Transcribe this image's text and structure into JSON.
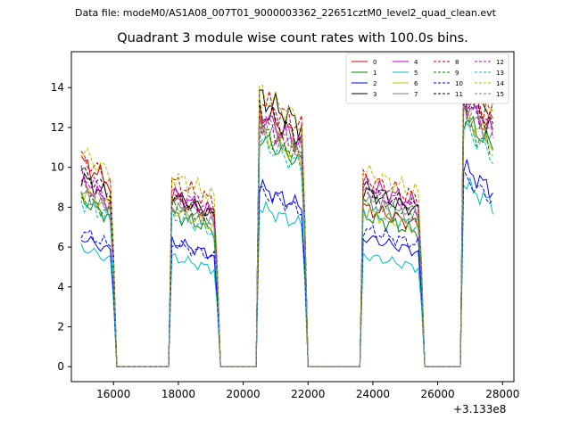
{
  "suptitle": "Data file: modeM0/AS1A08_007T01_9000003362_22651cztM0_level2_quad_clean.evt",
  "chart_data": {
    "type": "line",
    "title": "Quadrant 3 module wise count rates with 100.0s bins.",
    "xlabel": "",
    "ylabel": "",
    "x_offset_label": "+3.133e8",
    "x_ticks": [
      16000,
      18000,
      20000,
      22000,
      24000,
      26000,
      28000
    ],
    "x_tick_labels": [
      "16000",
      "18000",
      "20000",
      "22000",
      "24000",
      "26000",
      "28000"
    ],
    "y_ticks": [
      0,
      2,
      4,
      6,
      8,
      10,
      12,
      14
    ],
    "y_tick_labels": [
      "0",
      "2",
      "4",
      "6",
      "8",
      "10",
      "12",
      "14"
    ],
    "xlim": [
      14700,
      28350
    ],
    "ylim": [
      -0.75,
      15.8
    ],
    "grid": false,
    "legend_position": "top-right",
    "segments": [
      {
        "start": 15000,
        "end": 16000,
        "drop_end": 16100
      },
      {
        "start": 17800,
        "end": 19200,
        "drop_end": 19300
      },
      {
        "start": 20500,
        "end": 21900,
        "drop_end": 22000
      },
      {
        "start": 23700,
        "end": 25500,
        "drop_end": 25600
      },
      {
        "start": 26800,
        "end": 27700,
        "drop_end": 27700
      }
    ],
    "gaps_value": 0,
    "series": [
      {
        "name": "0",
        "color": "#d00000",
        "dash": "solid",
        "levels": [
          10.3,
          8.5,
          12.8,
          8.0,
          13.8
        ]
      },
      {
        "name": "1",
        "color": "#008000",
        "dash": "solid",
        "levels": [
          8.4,
          7.7,
          11.5,
          7.6,
          12.5
        ]
      },
      {
        "name": "2",
        "color": "#0000ff",
        "dash": "solid",
        "levels": [
          6.5,
          6.3,
          9.0,
          6.5,
          10.0
        ]
      },
      {
        "name": "3",
        "color": "#000000",
        "dash": "solid",
        "levels": [
          9.5,
          8.6,
          13.6,
          8.8,
          14.5
        ]
      },
      {
        "name": "4",
        "color": "#bf00bf",
        "dash": "solid",
        "levels": [
          9.2,
          8.7,
          12.6,
          9.2,
          13.3
        ]
      },
      {
        "name": "5",
        "color": "#00bfbf",
        "dash": "solid",
        "levels": [
          6.0,
          5.5,
          8.0,
          5.6,
          9.2
        ]
      },
      {
        "name": "6",
        "color": "#bfbf00",
        "dash": "solid",
        "levels": [
          8.9,
          7.9,
          11.8,
          7.8,
          12.7
        ]
      },
      {
        "name": "7",
        "color": "#7f7f7f",
        "dash": "solid",
        "levels": [
          8.7,
          8.0,
          12.1,
          8.3,
          12.9
        ]
      },
      {
        "name": "8",
        "color": "#d00000",
        "dash": "dashed",
        "levels": [
          10.5,
          9.3,
          13.5,
          9.5,
          14.2
        ]
      },
      {
        "name": "9",
        "color": "#008000",
        "dash": "dashed",
        "levels": [
          8.6,
          8.2,
          11.9,
          8.5,
          12.3
        ]
      },
      {
        "name": "10",
        "color": "#0000ff",
        "dash": "dashed",
        "levels": [
          6.8,
          6.2,
          8.8,
          6.9,
          9.5
        ]
      },
      {
        "name": "11",
        "color": "#000000",
        "dash": "dashed",
        "levels": [
          9.8,
          8.5,
          12.9,
          9.0,
          13.6
        ]
      },
      {
        "name": "12",
        "color": "#bf00bf",
        "dash": "dashed",
        "levels": [
          9.6,
          8.7,
          12.3,
          8.9,
          13.5
        ]
      },
      {
        "name": "13",
        "color": "#00bfbf",
        "dash": "dashed",
        "levels": [
          8.3,
          7.6,
          11.3,
          7.9,
          12.0
        ]
      },
      {
        "name": "14",
        "color": "#bfbf00",
        "dash": "dashed",
        "levels": [
          10.8,
          9.6,
          13.8,
          9.8,
          14.6
        ]
      },
      {
        "name": "15",
        "color": "#7f7f7f",
        "dash": "dashed",
        "levels": [
          9.0,
          8.3,
          12.4,
          8.7,
          13.2
        ]
      }
    ]
  }
}
